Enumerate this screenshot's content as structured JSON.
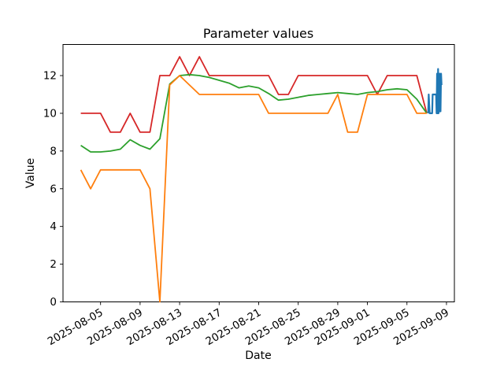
{
  "chart_data": {
    "type": "line",
    "title": "Parameter values",
    "xlabel": "Date",
    "ylabel": "Value",
    "grid": false,
    "legend": false,
    "x_axis": {
      "unit": "days since 2025-08-05",
      "range": [
        -3.8,
        35.8
      ],
      "ticks": [
        {
          "day": 0,
          "label": "2025-08-05"
        },
        {
          "day": 4,
          "label": "2025-08-09"
        },
        {
          "day": 8,
          "label": "2025-08-13"
        },
        {
          "day": 12,
          "label": "2025-08-17"
        },
        {
          "day": 16,
          "label": "2025-08-21"
        },
        {
          "day": 20,
          "label": "2025-08-25"
        },
        {
          "day": 24,
          "label": "2025-08-29"
        },
        {
          "day": 27,
          "label": "2025-09-01"
        },
        {
          "day": 31,
          "label": "2025-09-05"
        },
        {
          "day": 35,
          "label": "2025-09-09"
        }
      ]
    },
    "y_axis": {
      "range": [
        0,
        13.65
      ],
      "ticks": [
        0,
        2,
        4,
        6,
        8,
        10,
        12
      ]
    },
    "series": [
      {
        "name": "series-red",
        "color": "#d62728",
        "width": 1.8,
        "points": [
          [
            -2,
            10
          ],
          [
            -1,
            10
          ],
          [
            0,
            10
          ],
          [
            1,
            9
          ],
          [
            2,
            9
          ],
          [
            3,
            10
          ],
          [
            4,
            9
          ],
          [
            5,
            9
          ],
          [
            6,
            12
          ],
          [
            7,
            12
          ],
          [
            8,
            13
          ],
          [
            9,
            12
          ],
          [
            10,
            13
          ],
          [
            11,
            12
          ],
          [
            12,
            12
          ],
          [
            13,
            12
          ],
          [
            14,
            12
          ],
          [
            15,
            12
          ],
          [
            16,
            12
          ],
          [
            17,
            12
          ],
          [
            18,
            11
          ],
          [
            19,
            11
          ],
          [
            20,
            12
          ],
          [
            21,
            12
          ],
          [
            22,
            12
          ],
          [
            23,
            12
          ],
          [
            24,
            12
          ],
          [
            25,
            12
          ],
          [
            26,
            12
          ],
          [
            27,
            12
          ],
          [
            28,
            11
          ],
          [
            29,
            12
          ],
          [
            30,
            12
          ],
          [
            31,
            12
          ],
          [
            32,
            12
          ],
          [
            33,
            10
          ]
        ]
      },
      {
        "name": "series-green",
        "color": "#2ca02c",
        "width": 1.8,
        "points": [
          [
            -2,
            8.3
          ],
          [
            -1,
            7.95
          ],
          [
            0,
            7.95
          ],
          [
            1,
            8.0
          ],
          [
            2,
            8.1
          ],
          [
            3,
            8.6
          ],
          [
            4,
            8.3
          ],
          [
            5,
            8.1
          ],
          [
            6,
            8.65
          ],
          [
            7,
            11.55
          ],
          [
            8,
            12.0
          ],
          [
            9,
            12.05
          ],
          [
            10,
            12.0
          ],
          [
            11,
            11.9
          ],
          [
            12,
            11.75
          ],
          [
            13,
            11.6
          ],
          [
            14,
            11.35
          ],
          [
            15,
            11.45
          ],
          [
            16,
            11.35
          ],
          [
            17,
            11.05
          ],
          [
            18,
            10.7
          ],
          [
            19,
            10.75
          ],
          [
            20,
            10.85
          ],
          [
            21,
            10.95
          ],
          [
            22,
            11.0
          ],
          [
            23,
            11.05
          ],
          [
            24,
            11.1
          ],
          [
            25,
            11.05
          ],
          [
            26,
            11.0
          ],
          [
            27,
            11.1
          ],
          [
            28,
            11.15
          ],
          [
            29,
            11.25
          ],
          [
            30,
            11.3
          ],
          [
            31,
            11.25
          ],
          [
            32,
            10.75
          ],
          [
            33,
            10.0
          ]
        ]
      },
      {
        "name": "series-orange",
        "color": "#ff7f0e",
        "width": 1.8,
        "points": [
          [
            -2,
            7
          ],
          [
            -1,
            6
          ],
          [
            0,
            7
          ],
          [
            1,
            7
          ],
          [
            2,
            7
          ],
          [
            3,
            7
          ],
          [
            4,
            7
          ],
          [
            5,
            6
          ],
          [
            6,
            0
          ],
          [
            7,
            11.5
          ],
          [
            8,
            12
          ],
          [
            9,
            11.5
          ],
          [
            10,
            11
          ],
          [
            11,
            11
          ],
          [
            12,
            11
          ],
          [
            13,
            11
          ],
          [
            14,
            11
          ],
          [
            15,
            11
          ],
          [
            16,
            11
          ],
          [
            17,
            10
          ],
          [
            18,
            10
          ],
          [
            19,
            10
          ],
          [
            20,
            10
          ],
          [
            21,
            10
          ],
          [
            22,
            10
          ],
          [
            23,
            10
          ],
          [
            24,
            11
          ],
          [
            25,
            9
          ],
          [
            26,
            9
          ],
          [
            27,
            11
          ],
          [
            28,
            11
          ],
          [
            29,
            11
          ],
          [
            30,
            11
          ],
          [
            31,
            11
          ],
          [
            32,
            10
          ],
          [
            33,
            10
          ]
        ]
      },
      {
        "name": "series-blue",
        "color": "#1f77b4",
        "width": 2.2,
        "points": [
          [
            33.15,
            10
          ],
          [
            33.2,
            11
          ],
          [
            33.3,
            10
          ],
          [
            33.55,
            10
          ],
          [
            33.6,
            11
          ],
          [
            33.95,
            11
          ],
          [
            34.0,
            10
          ],
          [
            34.05,
            12.1
          ],
          [
            34.1,
            10
          ],
          [
            34.15,
            12.35
          ],
          [
            34.2,
            10
          ],
          [
            34.25,
            12.1
          ],
          [
            34.3,
            10.1
          ],
          [
            34.35,
            12.1
          ],
          [
            34.4,
            10.1
          ],
          [
            34.45,
            12.1
          ],
          [
            34.5,
            11.5
          ]
        ]
      }
    ]
  }
}
